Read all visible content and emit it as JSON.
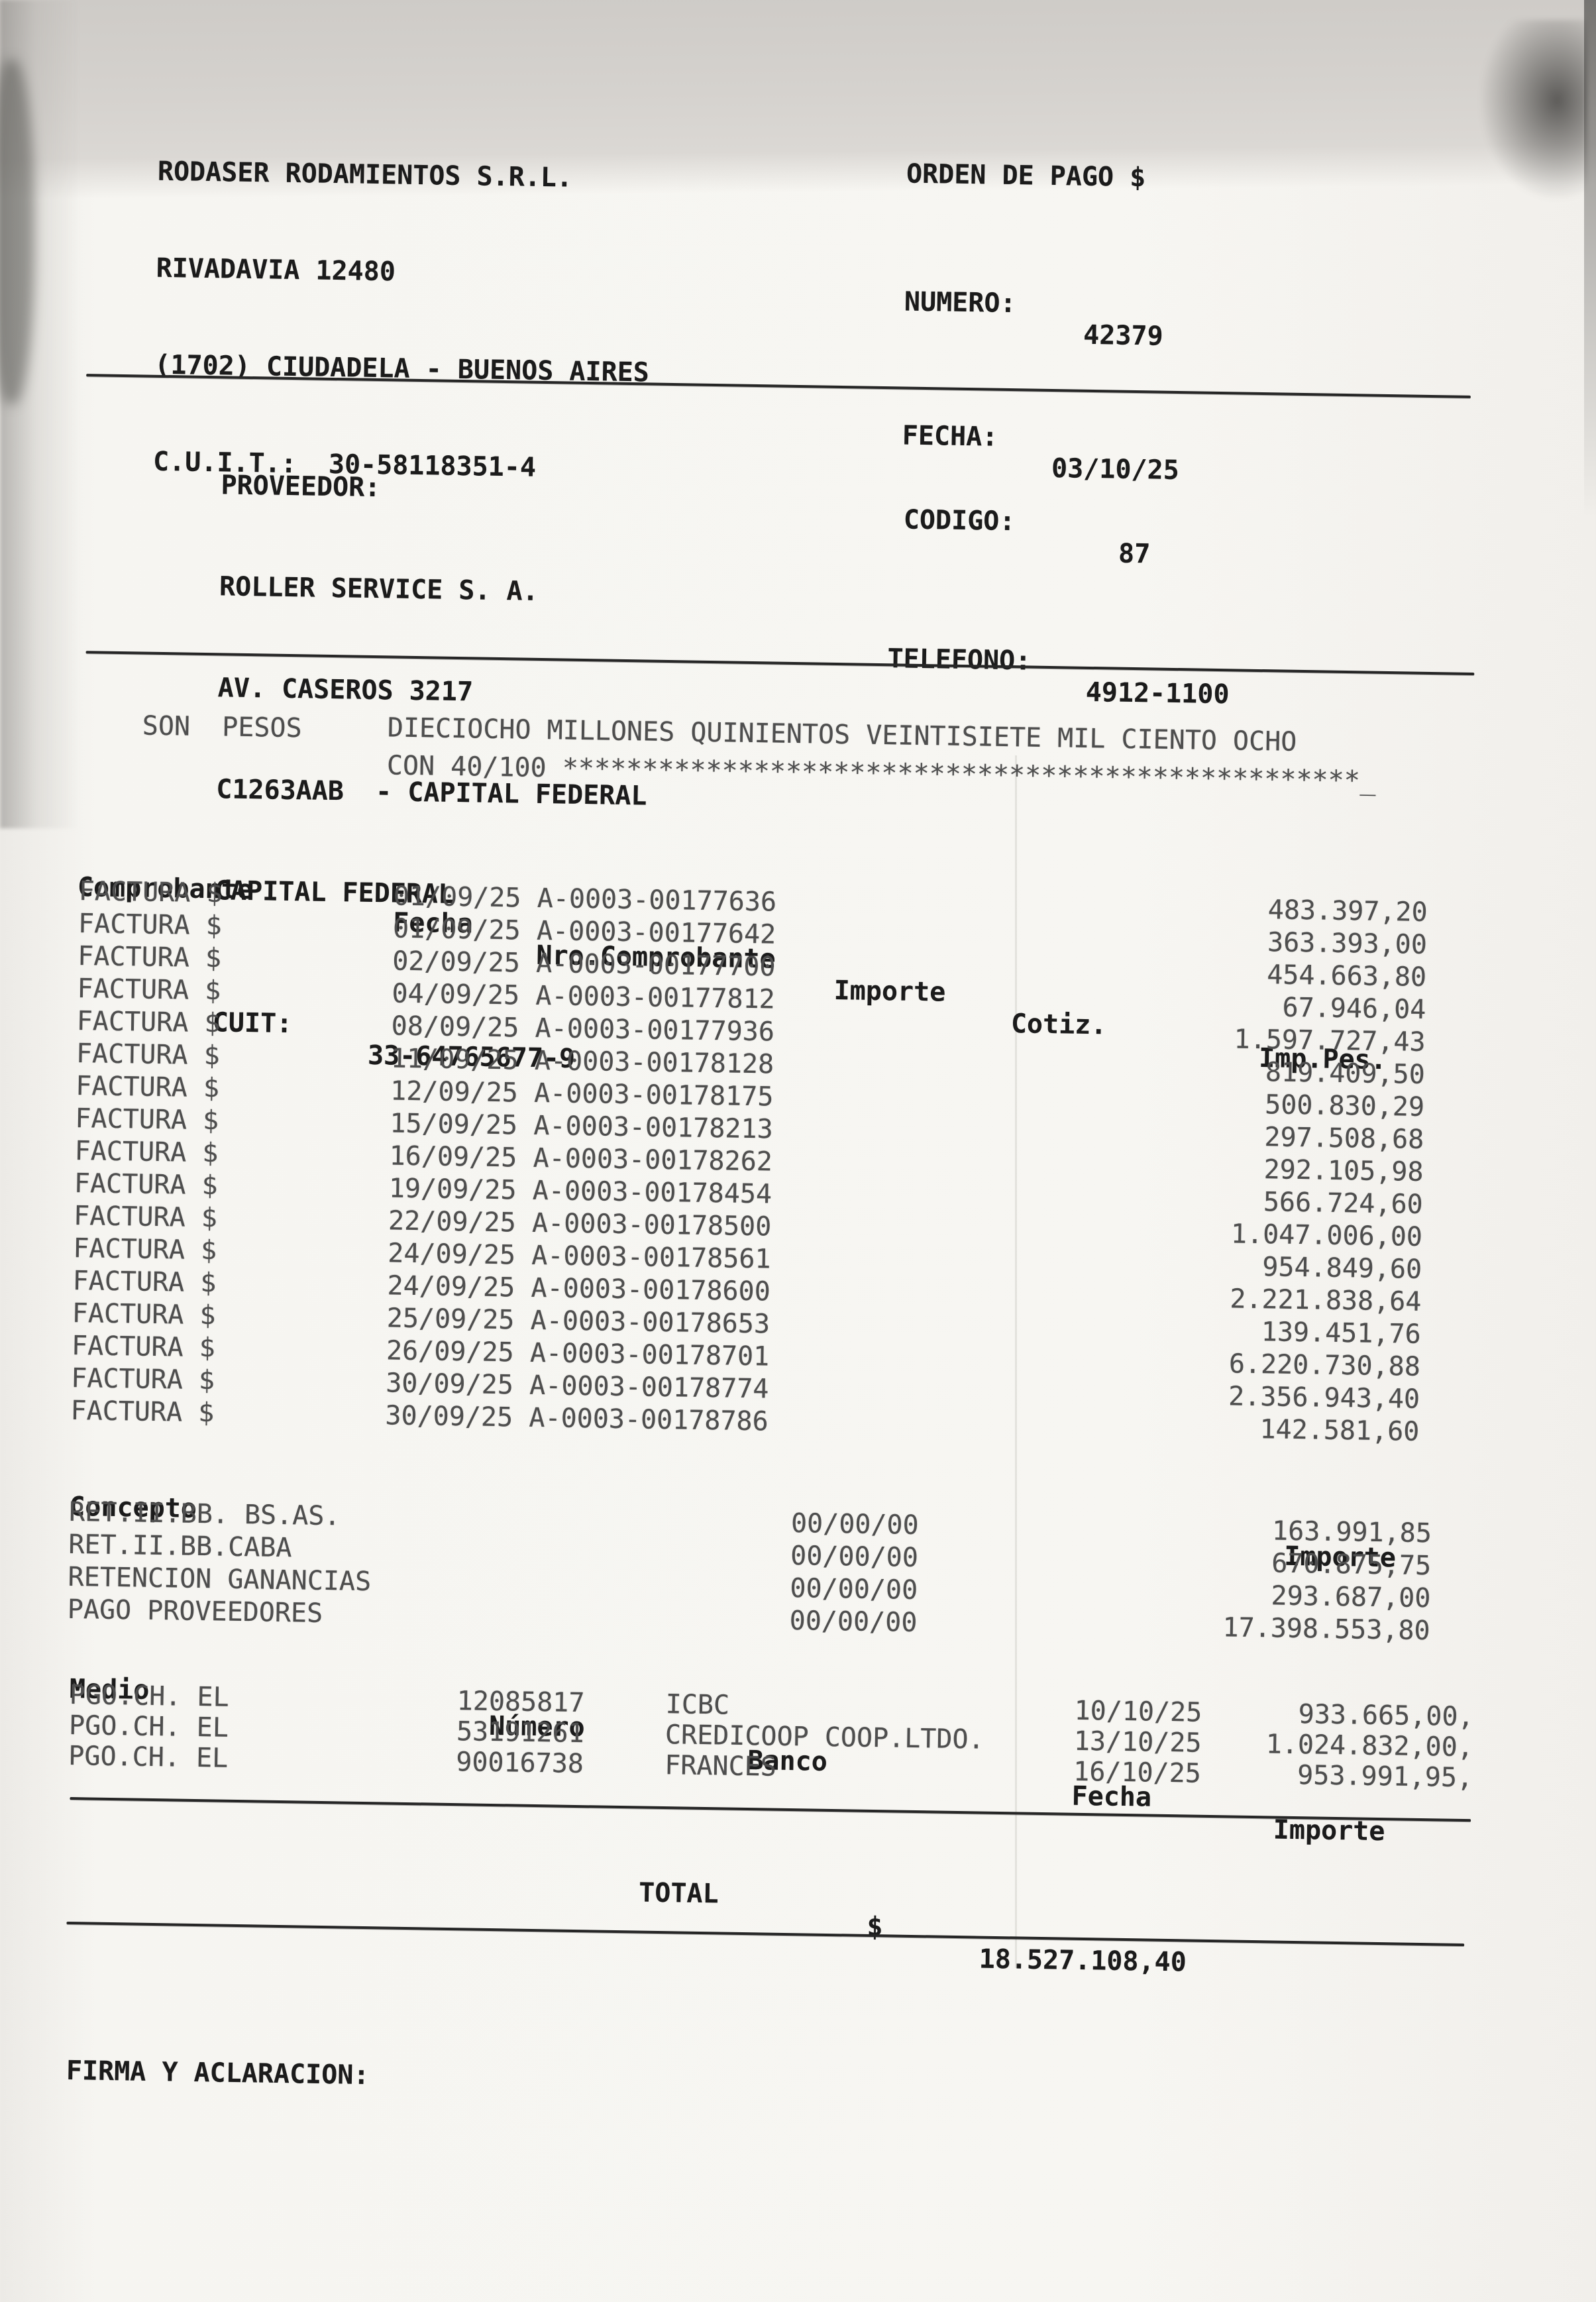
{
  "colors": {
    "ink": "#1b1b1b",
    "faded_ink": "#4e4e4e",
    "paper": "#f7f6f2",
    "scan_band": "#d5d2ce"
  },
  "document": {
    "issuer": {
      "lines": [
        "RODASER RODAMIENTOS S.R.L.",
        "RIVADAVIA 12480",
        "(1702) CIUDADELA - BUENOS AIRES",
        "C.U.I.T.:  30-58118351-4"
      ]
    },
    "order": {
      "title": "ORDEN DE PAGO $",
      "numero_label": "NUMERO:",
      "numero": "42379",
      "fecha_label": "FECHA:",
      "fecha": "03/10/25"
    },
    "proveedor": {
      "section_label": "PROVEEDOR:",
      "name": "ROLLER SERVICE S. A.",
      "address": "AV. CASEROS 3217",
      "postal_line": "C1263AAB  - CAPITAL FEDERAL",
      "city": "CAPITAL FEDERAL",
      "cuit_label": "CUIT:",
      "cuit": "33-64765677-9",
      "codigo_label": "CODIGO:",
      "codigo": "87",
      "telefono_label": "TELEFONO:",
      "telefono": "4912-1100"
    },
    "amount_words": {
      "prefix": "SON  PESOS",
      "line1": "DIECIOCHO MILLONES QUINIENTOS VEINTISIETE MIL CIENTO OCHO",
      "line2": "CON 40/100 **************************************************_"
    },
    "comprobantes": {
      "headers": {
        "comprobante": "Comprobante",
        "fecha": "Fecha",
        "nro": "Nro.Comprobante",
        "importe": "Importe",
        "cotiz": "Cotiz.",
        "imp_pes": "Imp.Pes."
      },
      "rows": [
        {
          "tipo": "FACTURA $",
          "fecha": "01/09/25",
          "nro": "A-0003-00177636",
          "imp_pes": "483.397,20"
        },
        {
          "tipo": "FACTURA $",
          "fecha": "01/09/25",
          "nro": "A-0003-00177642",
          "imp_pes": "363.393,00"
        },
        {
          "tipo": "FACTURA $",
          "fecha": "02/09/25",
          "nro": "A-0003-00177700",
          "imp_pes": "454.663,80"
        },
        {
          "tipo": "FACTURA $",
          "fecha": "04/09/25",
          "nro": "A-0003-00177812",
          "imp_pes": "67.946,04"
        },
        {
          "tipo": "FACTURA $",
          "fecha": "08/09/25",
          "nro": "A-0003-00177936",
          "imp_pes": "1.597.727,43"
        },
        {
          "tipo": "FACTURA $",
          "fecha": "11/09/25",
          "nro": "A-0003-00178128",
          "imp_pes": "819.409,50"
        },
        {
          "tipo": "FACTURA $",
          "fecha": "12/09/25",
          "nro": "A-0003-00178175",
          "imp_pes": "500.830,29"
        },
        {
          "tipo": "FACTURA $",
          "fecha": "15/09/25",
          "nro": "A-0003-00178213",
          "imp_pes": "297.508,68"
        },
        {
          "tipo": "FACTURA $",
          "fecha": "16/09/25",
          "nro": "A-0003-00178262",
          "imp_pes": "292.105,98"
        },
        {
          "tipo": "FACTURA $",
          "fecha": "19/09/25",
          "nro": "A-0003-00178454",
          "imp_pes": "566.724,60"
        },
        {
          "tipo": "FACTURA $",
          "fecha": "22/09/25",
          "nro": "A-0003-00178500",
          "imp_pes": "1.047.006,00"
        },
        {
          "tipo": "FACTURA $",
          "fecha": "24/09/25",
          "nro": "A-0003-00178561",
          "imp_pes": "954.849,60"
        },
        {
          "tipo": "FACTURA $",
          "fecha": "24/09/25",
          "nro": "A-0003-00178600",
          "imp_pes": "2.221.838,64"
        },
        {
          "tipo": "FACTURA $",
          "fecha": "25/09/25",
          "nro": "A-0003-00178653",
          "imp_pes": "139.451,76"
        },
        {
          "tipo": "FACTURA $",
          "fecha": "26/09/25",
          "nro": "A-0003-00178701",
          "imp_pes": "6.220.730,88"
        },
        {
          "tipo": "FACTURA $",
          "fecha": "30/09/25",
          "nro": "A-0003-00178774",
          "imp_pes": "2.356.943,40"
        },
        {
          "tipo": "FACTURA $",
          "fecha": "30/09/25",
          "nro": "A-0003-00178786",
          "imp_pes": "142.581,60"
        }
      ]
    },
    "conceptos": {
      "headers": {
        "concepto": "Concepto",
        "importe": "Importe"
      },
      "rows": [
        {
          "concepto": "RET.II.BB. BS.AS.",
          "fecha": "00/00/00",
          "importe": "163.991,85"
        },
        {
          "concepto": "RET.II.BB.CABA",
          "fecha": "00/00/00",
          "importe": "670.875,75"
        },
        {
          "concepto": "RETENCION GANANCIAS",
          "fecha": "00/00/00",
          "importe": "293.687,00"
        },
        {
          "concepto": "PAGO PROVEEDORES",
          "fecha": "00/00/00",
          "importe": "17.398.553,80"
        }
      ]
    },
    "medios": {
      "headers": {
        "medio": "Medio",
        "numero": "Número",
        "banco": "Banco",
        "fecha": "Fecha",
        "importe": "Importe"
      },
      "rows": [
        {
          "medio": "PGO.CH. EL",
          "numero": "12085817",
          "banco": "ICBC",
          "fecha": "10/10/25",
          "importe": "933.665,00,"
        },
        {
          "medio": "PGO.CH. EL",
          "numero": "53191261",
          "banco": "CREDICOOP COOP.LTDO.",
          "fecha": "13/10/25",
          "importe": "1.024.832,00,"
        },
        {
          "medio": "PGO.CH. EL",
          "numero": "90016738",
          "banco": "FRANCES",
          "fecha": "16/10/25",
          "importe": "953.991,95,"
        }
      ]
    },
    "total": {
      "label": "TOTAL",
      "currency": "$",
      "amount": "18.527.108,40"
    },
    "firma_label": "FIRMA Y ACLARACION:"
  }
}
